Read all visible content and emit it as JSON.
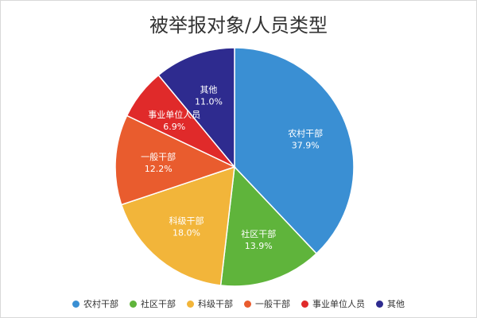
{
  "chart_data": {
    "type": "pie",
    "title": "被举报对象/人员类型",
    "slices": [
      {
        "label": "农村干部",
        "value": 37.9,
        "value_label": "37.9%",
        "color": "#3a8fd3"
      },
      {
        "label": "社区干部",
        "value": 13.9,
        "value_label": "13.9%",
        "color": "#5fb43b"
      },
      {
        "label": "科级干部",
        "value": 18.0,
        "value_label": "18.0%",
        "color": "#f2b53a"
      },
      {
        "label": "一般干部",
        "value": 12.2,
        "value_label": "12.2%",
        "color": "#e95c2e"
      },
      {
        "label": "事业单位人员",
        "value": 6.9,
        "value_label": "6.9%",
        "color": "#e02a2a"
      },
      {
        "label": "其他",
        "value": 11.0,
        "value_label": "11.0%",
        "color": "#2e2b8f"
      }
    ],
    "start_angle": "12 o'clock",
    "direction": "clockwise",
    "legend_position": "bottom"
  }
}
